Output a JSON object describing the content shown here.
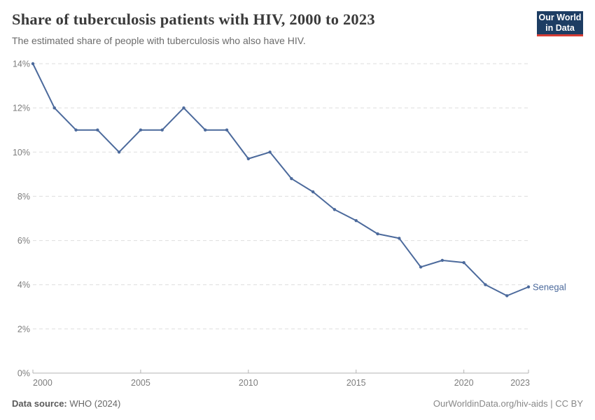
{
  "header": {
    "title": "Share of tuberculosis patients with HIV, 2000 to 2023",
    "subtitle": "The estimated share of people with tuberculosis who also have HIV."
  },
  "logo": {
    "line1": "Our World",
    "line2": "in Data",
    "bg_color": "#1d3d63",
    "accent_color": "#d73c34"
  },
  "chart_data": {
    "type": "line",
    "title": "Share of tuberculosis patients with HIV, 2000 to 2023",
    "xlabel": "",
    "ylabel": "",
    "x": [
      2000,
      2001,
      2002,
      2003,
      2004,
      2005,
      2006,
      2007,
      2008,
      2009,
      2010,
      2011,
      2012,
      2013,
      2014,
      2015,
      2016,
      2017,
      2018,
      2019,
      2020,
      2021,
      2022,
      2023
    ],
    "series": [
      {
        "name": "Senegal",
        "color": "#4c6a9c",
        "values": [
          14,
          12,
          11,
          11,
          10,
          11,
          11,
          12,
          11,
          11,
          9.7,
          10,
          8.8,
          8.2,
          7.4,
          6.9,
          6.3,
          6.1,
          4.8,
          5.1,
          5.0,
          4.0,
          3.5,
          3.9
        ]
      }
    ],
    "xlim": [
      2000,
      2023
    ],
    "ylim": [
      0,
      14
    ],
    "x_ticks": [
      2000,
      2005,
      2010,
      2015,
      2020,
      2023
    ],
    "y_ticks": [
      0,
      2,
      4,
      6,
      8,
      10,
      12,
      14
    ],
    "y_tick_suffix": "%",
    "grid": "horizontal-dashed",
    "legend": "end-of-line-label",
    "end_label": "Senegal",
    "grid_color": "#dedede",
    "axis_color": "#b3b3b3",
    "tick_label_color": "#7d7d7d"
  },
  "footer": {
    "source_label": "Data source:",
    "source_value": "WHO (2024)",
    "right_text": "OurWorldinData.org/hiv-aids | CC BY"
  }
}
